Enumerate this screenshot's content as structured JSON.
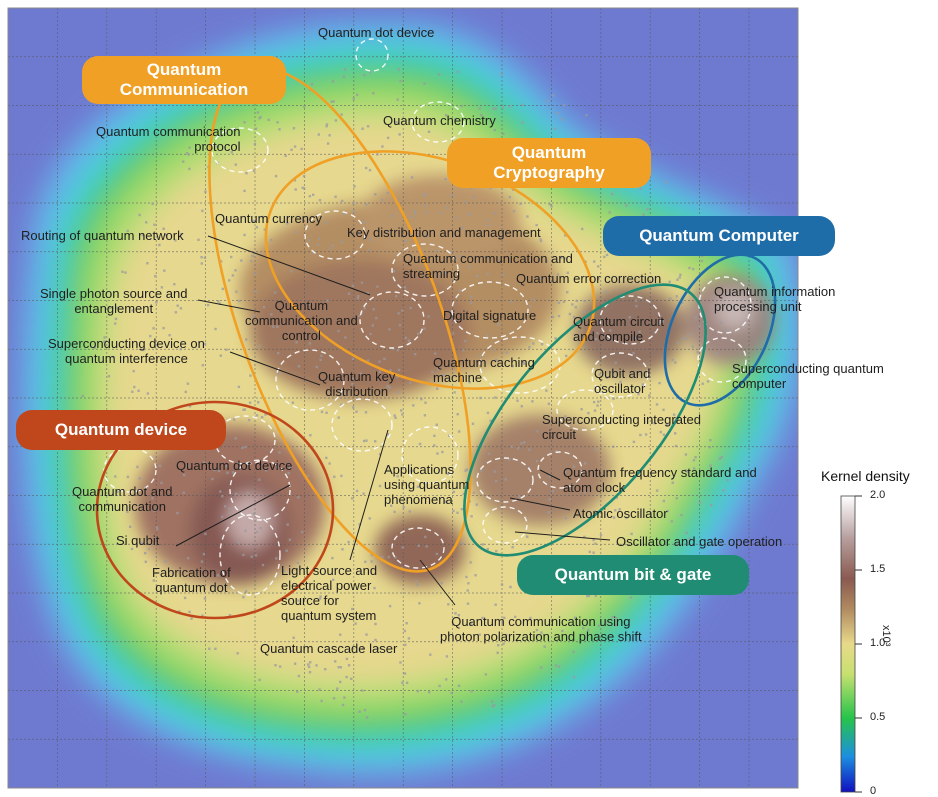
{
  "colors": {
    "communication": "#f0a025",
    "cryptography": "#f0a025",
    "computer": "#1f6da8",
    "device": "#c0471c",
    "bit_gate": "#1f8c73"
  },
  "clusters": {
    "communication": "Quantum\nCommunication",
    "cryptography": "Quantum\nCryptography",
    "computer": "Quantum Computer",
    "device": "Quantum device",
    "bit_gate": "Quantum bit & gate"
  },
  "labels": {
    "dot_device_top": "Quantum dot device",
    "chemistry": "Quantum chemistry",
    "comm_protocol": "Quantum communication\nprotocol",
    "currency": "Quantum currency",
    "routing": "Routing of quantum network",
    "key_dist_mgmt": "Key distribution and management",
    "comm_streaming": "Quantum communication and\nstreaming",
    "error_correction": "Quantum error correction",
    "single_photon": "Single photon source and\nentanglement",
    "comm_control": "Quantum\ncommunication and\ncontrol",
    "digital_signature": "Digital signature",
    "circuit_compile": "Quantum circuit\nand compile",
    "info_unit": "Quantum information\nprocessing unit",
    "sc_interference": "Superconducting device on\nquantum interference",
    "key_distribution": "Quantum key\ndistribution",
    "caching": "Quantum caching\nmachine",
    "qubit_osc": "Qubit and\noscillator",
    "sc_computer": "Superconducting quantum\ncomputer",
    "sc_circuit": "Superconducting integrated\ncircuit",
    "dot_device_left": "Quantum dot device",
    "applications": "Applications\nusing quantum\nphenomena",
    "freq_standard": "Quantum frequency standard and\natom clock",
    "dot_comm": "Quantum dot and\ncommunication",
    "si_qubit": "Si qubit",
    "atomic_osc": "Atomic oscillator",
    "osc_gate": "Oscillator and gate operation",
    "fabrication": "Fabrication of\nquantum dot",
    "light_source": "Light source and\nelectrical power\nsource for\nquantum system",
    "photon_pol": "Quantum communication using\nphoton polarization and phase shift",
    "cascade_laser": "Quantum cascade laser"
  },
  "colorbar": {
    "title": "Kernel density",
    "ticks": [
      "2.0",
      "1.5",
      "1.0",
      "0.5",
      "0"
    ],
    "exponent": "x10³",
    "min": 0,
    "max": 2.0
  }
}
